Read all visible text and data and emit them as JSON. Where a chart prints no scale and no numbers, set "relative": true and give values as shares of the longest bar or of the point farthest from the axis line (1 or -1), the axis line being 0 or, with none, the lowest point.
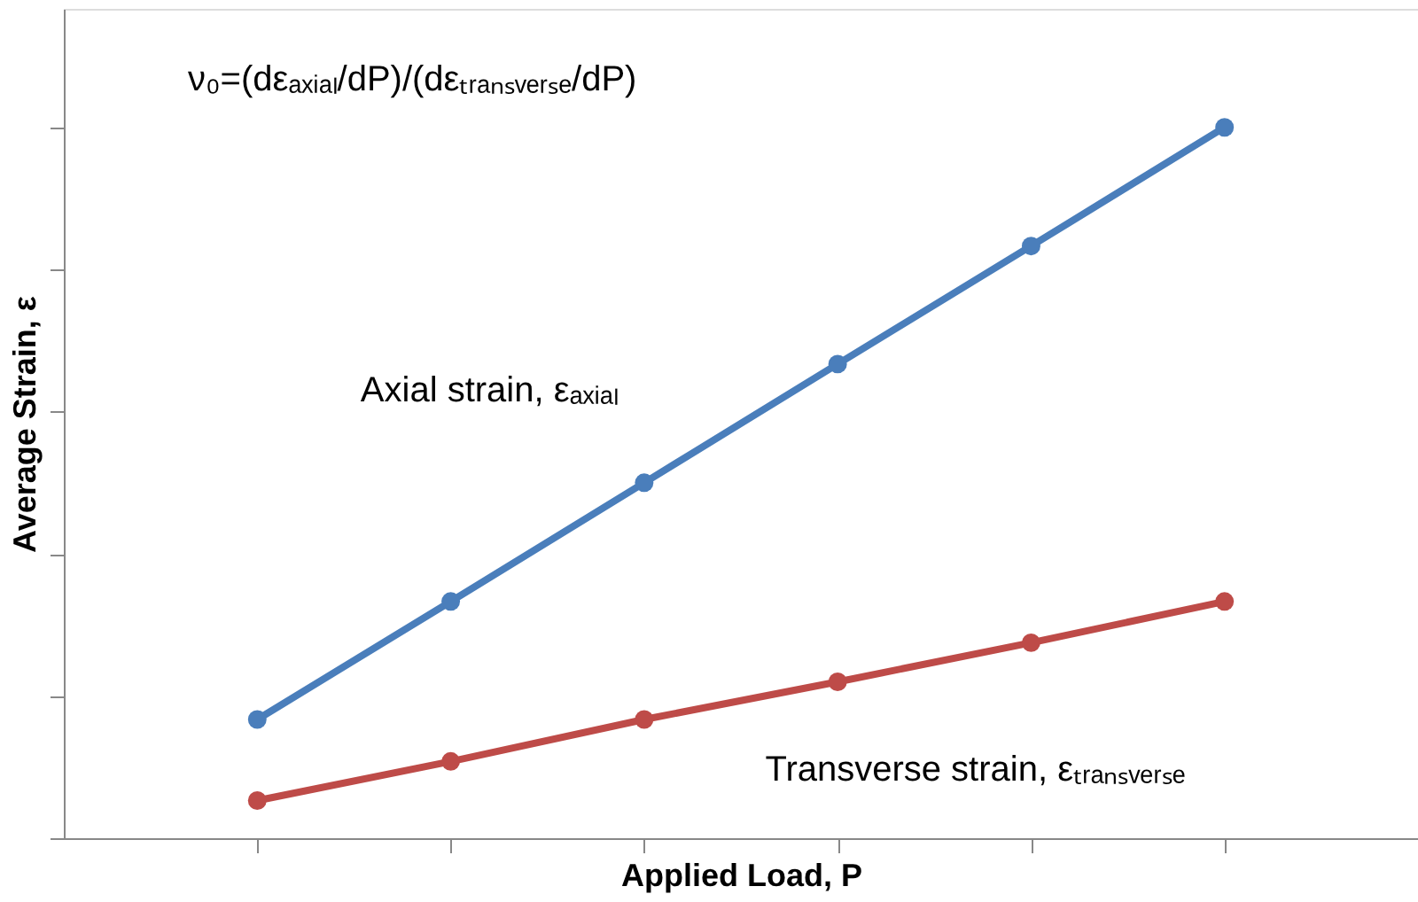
{
  "chart_data": {
    "type": "line",
    "relative": true,
    "xlabel": "Applied Load, P",
    "ylabel": "Average Strain, ε",
    "annotations": [
      "ν₀=(dεₐₓᵢₐₗ/dP)/(dεₜᵣₐₙₛᵥₑᵣₛₑ/dP)"
    ],
    "categories": [
      null,
      null,
      null,
      null,
      null,
      null
    ],
    "series": [
      {
        "name": "Axial strain, εₐₓᵢₐₗ",
        "color": "#4a7ebb",
        "values": [
          0.167,
          0.333,
          0.5,
          0.667,
          0.833,
          1
        ]
      },
      {
        "name": "Transverse strain, εₜᵣₐₙₛᵥₑᵣₛₑ",
        "color": "#be4b48",
        "values": [
          0.053,
          0.108,
          0.167,
          0.22,
          0.275,
          0.333
        ]
      }
    ],
    "marker": "circle",
    "grid": false,
    "tick_labels": false
  }
}
